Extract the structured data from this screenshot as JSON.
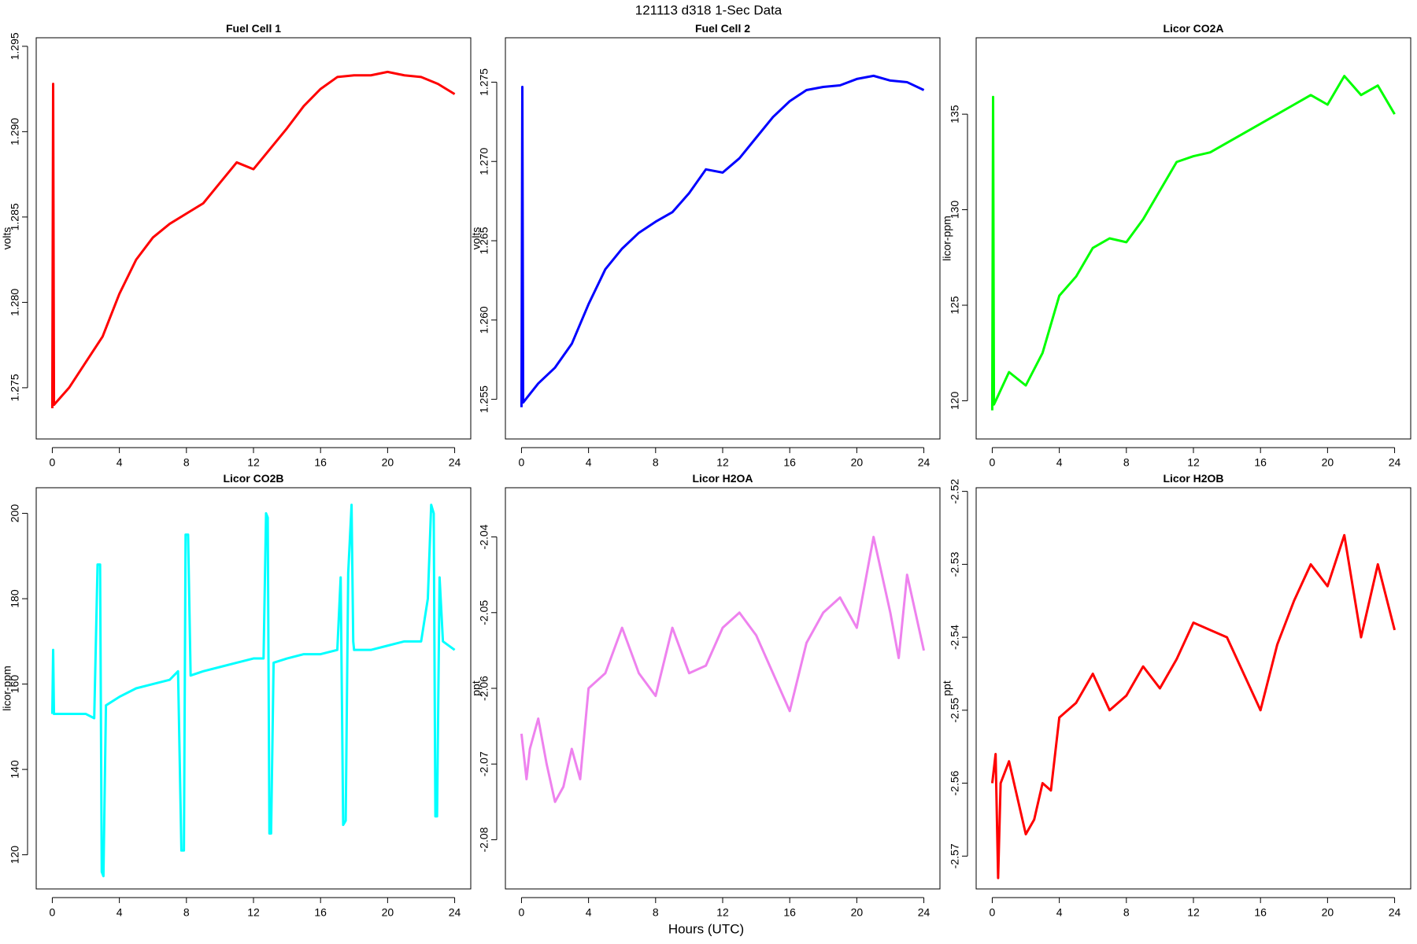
{
  "title": "121113   d318   1-Sec Data",
  "xlabel": "Hours (UTC)",
  "chart_data": [
    {
      "type": "line",
      "title": "Fuel Cell 1",
      "ylabel": "volts",
      "color": "#ff0000",
      "x": [
        0,
        0.05,
        0.1,
        1,
        2,
        3,
        4,
        5,
        6,
        7,
        8,
        9,
        10,
        11,
        12,
        13,
        14,
        15,
        16,
        17,
        18,
        19,
        20,
        21,
        22,
        23,
        24
      ],
      "values": [
        1.2738,
        1.2928,
        1.274,
        1.275,
        1.2765,
        1.278,
        1.2805,
        1.2825,
        1.2838,
        1.2846,
        1.2852,
        1.2858,
        1.287,
        1.2882,
        1.2878,
        1.289,
        1.2902,
        1.2915,
        1.2925,
        1.2932,
        1.2933,
        1.2933,
        1.2935,
        1.2933,
        1.2932,
        1.2928,
        1.2922
      ],
      "xlim": [
        -0.96,
        24.96
      ],
      "xticks": [
        0,
        4,
        8,
        12,
        16,
        20,
        24
      ],
      "ylim": [
        1.272,
        1.2955
      ],
      "yticks": [
        1.275,
        {
          "value": 1.28,
          "label": "1.280"
        },
        1.285,
        {
          "value": 1.29,
          "label": "1.290"
        },
        1.295
      ]
    },
    {
      "type": "line",
      "title": "Fuel Cell 2",
      "ylabel": "volts",
      "color": "#0000ff",
      "x": [
        0,
        0.05,
        0.1,
        1,
        2,
        3,
        4,
        5,
        6,
        7,
        8,
        9,
        10,
        11,
        12,
        13,
        14,
        15,
        16,
        17,
        18,
        19,
        20,
        21,
        22,
        23,
        24
      ],
      "values": [
        1.2545,
        1.2747,
        1.2548,
        1.256,
        1.257,
        1.2585,
        1.261,
        1.2632,
        1.2645,
        1.2655,
        1.2662,
        1.2668,
        1.268,
        1.2695,
        1.2693,
        1.2702,
        1.2715,
        1.2728,
        1.2738,
        1.2745,
        1.2747,
        1.2748,
        1.2752,
        1.2754,
        1.2751,
        1.275,
        1.2745
      ],
      "xlim": [
        -0.96,
        24.96
      ],
      "xticks": [
        0,
        4,
        8,
        12,
        16,
        20,
        24
      ],
      "ylim": [
        1.2525,
        1.2778
      ],
      "yticks": [
        1.255,
        {
          "value": 1.26,
          "label": "1.260"
        },
        1.265,
        {
          "value": 1.27,
          "label": "1.270"
        },
        1.275
      ]
    },
    {
      "type": "line",
      "title": "Licor CO2A",
      "ylabel": "licor-ppm",
      "color": "#00ff00",
      "x": [
        0,
        0.05,
        0.1,
        1,
        2,
        3,
        4,
        5,
        6,
        7,
        8,
        9,
        10,
        11,
        12,
        13,
        14,
        15,
        16,
        17,
        18,
        19,
        20,
        21,
        22,
        23,
        24
      ],
      "values": [
        119.5,
        135.9,
        119.8,
        121.5,
        120.8,
        122.5,
        125.5,
        126.5,
        128,
        128.5,
        128.3,
        129.5,
        131,
        132.5,
        132.8,
        133,
        133.5,
        134,
        134.5,
        135,
        135.5,
        136,
        135.5,
        137,
        136,
        136.5,
        135
      ],
      "xlim": [
        -0.96,
        24.96
      ],
      "xticks": [
        0,
        4,
        8,
        12,
        16,
        20,
        24
      ],
      "ylim": [
        118,
        139
      ],
      "yticks": [
        120,
        125,
        130,
        135
      ]
    },
    {
      "type": "line",
      "title": "Licor CO2B",
      "ylabel": "licor-ppm",
      "color": "#00ffff",
      "x": [
        0,
        0.05,
        0.1,
        1,
        2,
        2.5,
        2.7,
        2.85,
        2.95,
        3.05,
        3.2,
        4,
        5,
        6,
        7,
        7.5,
        7.7,
        7.85,
        7.95,
        8.1,
        8.25,
        9,
        10,
        11,
        12,
        12.6,
        12.75,
        12.85,
        12.95,
        13.05,
        13.2,
        14,
        15,
        16,
        17,
        17.2,
        17.35,
        17.5,
        17.65,
        17.85,
        17.95,
        18,
        19,
        20,
        21,
        22,
        22.4,
        22.6,
        22.75,
        22.85,
        22.95,
        23.1,
        23.3,
        24
      ],
      "values": [
        153,
        168,
        153,
        153,
        153,
        152,
        188,
        188,
        116,
        115,
        155,
        157,
        159,
        160,
        161,
        163,
        121,
        121,
        195,
        195,
        162,
        163,
        164,
        165,
        166,
        166,
        200,
        199,
        125,
        125,
        165,
        166,
        167,
        167,
        168,
        185,
        127,
        128,
        186,
        202,
        170,
        168,
        168,
        169,
        170,
        170,
        180,
        202,
        200,
        129,
        129,
        185,
        170,
        168
      ],
      "xlim": [
        -0.96,
        24.96
      ],
      "xticks": [
        0,
        4,
        8,
        12,
        16,
        20,
        24
      ],
      "ylim": [
        112,
        206
      ],
      "yticks": [
        120,
        140,
        160,
        180,
        200
      ]
    },
    {
      "type": "line",
      "title": "Licor H2OA",
      "ylabel": "ppt",
      "color": "#ee82ee",
      "x": [
        0,
        0.3,
        0.5,
        1,
        1.5,
        2,
        2.5,
        3,
        3.5,
        4,
        5,
        6,
        7,
        8,
        9,
        10,
        11,
        12,
        13,
        14,
        15,
        16,
        17,
        18,
        19,
        20,
        21,
        22,
        22.5,
        23,
        24
      ],
      "values": [
        -2.066,
        -2.072,
        -2.068,
        -2.064,
        -2.07,
        -2.075,
        -2.073,
        -2.068,
        -2.072,
        -2.06,
        -2.058,
        -2.052,
        -2.058,
        -2.061,
        -2.052,
        -2.058,
        -2.057,
        -2.052,
        -2.05,
        -2.053,
        -2.058,
        -2.063,
        -2.054,
        -2.05,
        -2.048,
        -2.052,
        -2.04,
        -2.05,
        -2.056,
        -2.045,
        -2.055
      ],
      "xlim": [
        -0.96,
        24.96
      ],
      "xticks": [
        0,
        4,
        8,
        12,
        16,
        20,
        24
      ],
      "ylim": [
        -2.0865,
        -2.0335
      ],
      "yticks": [
        -2.08,
        -2.07,
        -2.06,
        -2.05,
        -2.04
      ]
    },
    {
      "type": "line",
      "title": "Licor H2OB",
      "ylabel": "ppt",
      "color": "#ff0000",
      "x": [
        0,
        0.2,
        0.35,
        0.5,
        1,
        1.5,
        2,
        2.5,
        3,
        3.5,
        4,
        5,
        6,
        7,
        8,
        9,
        10,
        11,
        12,
        13,
        14,
        15,
        16,
        17,
        18,
        19,
        20,
        21,
        22,
        22.5,
        23,
        24
      ],
      "values": [
        -2.56,
        -2.556,
        -2.573,
        -2.56,
        -2.557,
        -2.562,
        -2.567,
        -2.565,
        -2.56,
        -2.561,
        -2.551,
        -2.549,
        -2.545,
        -2.55,
        -2.548,
        -2.544,
        -2.547,
        -2.543,
        -2.538,
        -2.539,
        -2.54,
        -2.545,
        -2.55,
        -2.541,
        -2.535,
        -2.53,
        -2.533,
        -2.526,
        -2.54,
        -2.535,
        -2.53,
        -2.539
      ],
      "xlim": [
        -0.96,
        24.96
      ],
      "xticks": [
        0,
        4,
        8,
        12,
        16,
        20,
        24
      ],
      "ylim": [
        -2.5745,
        -2.5195
      ],
      "yticks": [
        -2.57,
        -2.56,
        -2.55,
        -2.54,
        -2.53,
        -2.52
      ]
    }
  ]
}
